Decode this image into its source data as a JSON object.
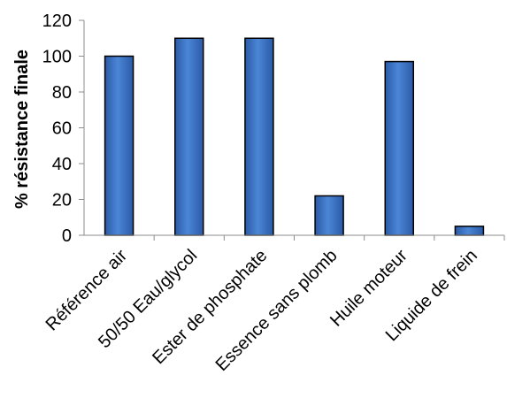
{
  "chart_data": {
    "type": "bar",
    "title": "",
    "xlabel": "",
    "ylabel": "% résistance finale",
    "categories": [
      "Référence air",
      "50/50 Eau/glycol",
      "Ester de phosphate",
      "Essence sans plomb",
      "Huile moteur",
      "Liquide de frein"
    ],
    "values": [
      100,
      110,
      110,
      22,
      97,
      5
    ],
    "ylim": [
      0,
      120
    ],
    "yticks": [
      "0",
      "20",
      "40",
      "60",
      "80",
      "100",
      "120"
    ],
    "grid": false,
    "legend": "none",
    "bar_color": "#3f77c8",
    "bar_edge_color": "#000000"
  }
}
